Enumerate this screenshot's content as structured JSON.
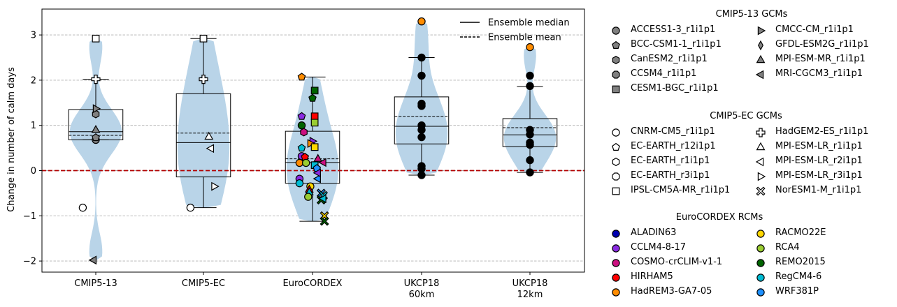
{
  "chart_data": {
    "type": "violin+box",
    "ylabel": "Change in number of calm days",
    "ylim": [
      -2.25,
      3.55
    ],
    "yticks": [
      -2,
      -1,
      0,
      1,
      2,
      3
    ],
    "ytick_labels": [
      "−2",
      "−1",
      "0",
      "1",
      "2",
      "3"
    ],
    "grid": "y-dashed",
    "zero_line": {
      "value": 0,
      "color": "#b30000",
      "style": "dashed"
    },
    "categories": [
      {
        "label": "CMIP5-13",
        "label2": ""
      },
      {
        "label": "CMIP5-EC",
        "label2": ""
      },
      {
        "label": "EuroCORDEX",
        "label2": ""
      },
      {
        "label": "UKCP18",
        "label2": "60km"
      },
      {
        "label": "UKCP18",
        "label2": "12km"
      }
    ],
    "distributions": [
      {
        "category": "CMIP5-13",
        "median": 0.86,
        "mean": 0.78,
        "q1": 0.68,
        "q3": 1.35,
        "whisker_low": 0.68,
        "whisker_high": 2.02,
        "violin_min": -1.98,
        "violin_max": 2.93
      },
      {
        "category": "CMIP5-EC",
        "median": 0.62,
        "mean": 0.83,
        "q1": -0.14,
        "q3": 1.7,
        "whisker_low": -0.82,
        "whisker_high": 2.92,
        "violin_min": -0.82,
        "violin_max": 2.92
      },
      {
        "category": "EuroCORDEX",
        "median": 0.18,
        "mean": 0.26,
        "q1": -0.28,
        "q3": 0.87,
        "whisker_low": -1.12,
        "whisker_high": 2.07,
        "violin_min": -1.12,
        "violin_max": 2.07
      },
      {
        "category": "UKCP18 60km",
        "median": 0.98,
        "mean": 1.2,
        "q1": 0.59,
        "q3": 1.63,
        "whisker_low": -0.1,
        "whisker_high": 2.5,
        "violin_min": -0.1,
        "violin_max": 3.3
      },
      {
        "category": "UKCP18 12km",
        "median": 0.79,
        "mean": 0.95,
        "q1": 0.53,
        "q3": 1.15,
        "whisker_low": -0.04,
        "whisker_high": 1.86,
        "violin_min": -0.04,
        "violin_max": 2.73
      }
    ],
    "points": [
      {
        "category": 0,
        "dx": 0.0,
        "y": 0.68,
        "marker": "circle",
        "color": "#808080"
      },
      {
        "category": 0,
        "dx": 0.0,
        "y": 0.73,
        "marker": "pentagon",
        "color": "#808080"
      },
      {
        "category": 0,
        "dx": 0.0,
        "y": 0.9,
        "marker": "triangle-up",
        "color": "#808080"
      },
      {
        "category": 0,
        "dx": 0.0,
        "y": 1.25,
        "marker": "hexagon",
        "color": "#808080"
      },
      {
        "category": 0,
        "dx": 0.0,
        "y": 1.37,
        "marker": "triangle-right",
        "color": "#808080"
      },
      {
        "category": 0,
        "dx": 0.0,
        "y": 2.02,
        "marker": "plus",
        "color": "#ffffff"
      },
      {
        "category": 0,
        "dx": 0.0,
        "y": 2.92,
        "marker": "square",
        "color": "#ffffff"
      },
      {
        "category": 0,
        "dx": -0.12,
        "y": -0.82,
        "marker": "circle",
        "color": "#ffffff"
      },
      {
        "category": 0,
        "dx": -0.02,
        "y": -1.98,
        "marker": "triangle-left",
        "color": "#808080"
      },
      {
        "category": 1,
        "dx": 0.0,
        "y": 2.92,
        "marker": "square",
        "color": "#ffffff"
      },
      {
        "category": 1,
        "dx": 0.0,
        "y": 2.02,
        "marker": "plus",
        "color": "#ffffff"
      },
      {
        "category": 1,
        "dx": 0.05,
        "y": 0.75,
        "marker": "triangle-up",
        "color": "#ffffff"
      },
      {
        "category": 1,
        "dx": 0.07,
        "y": 0.49,
        "marker": "triangle-left",
        "color": "#ffffff"
      },
      {
        "category": 1,
        "dx": 0.1,
        "y": -0.35,
        "marker": "triangle-right",
        "color": "#ffffff"
      },
      {
        "category": 1,
        "dx": -0.12,
        "y": -0.82,
        "marker": "circle",
        "color": "#ffffff"
      },
      {
        "category": 2,
        "dx": -0.1,
        "y": 2.07,
        "marker": "pentagon",
        "color": "#ff8c00"
      },
      {
        "category": 2,
        "dx": 0.02,
        "y": 1.77,
        "marker": "square",
        "color": "#006400"
      },
      {
        "category": 2,
        "dx": 0.0,
        "y": 1.6,
        "marker": "pentagon",
        "color": "#006400"
      },
      {
        "category": 2,
        "dx": -0.1,
        "y": 1.2,
        "marker": "pentagon",
        "color": "#8a2be2"
      },
      {
        "category": 2,
        "dx": 0.02,
        "y": 1.2,
        "marker": "square",
        "color": "#ff0000"
      },
      {
        "category": 2,
        "dx": 0.02,
        "y": 1.06,
        "marker": "square",
        "color": "#9acd32"
      },
      {
        "category": 2,
        "dx": -0.1,
        "y": 1.0,
        "marker": "circle",
        "color": "#006400"
      },
      {
        "category": 2,
        "dx": -0.08,
        "y": 0.85,
        "marker": "hexagon",
        "color": "#cc1080"
      },
      {
        "category": 2,
        "dx": 0.0,
        "y": 0.65,
        "marker": "triangle-right",
        "color": "#8a2be2"
      },
      {
        "category": 2,
        "dx": -0.02,
        "y": 0.6,
        "marker": "triangle-right",
        "color": "#ff8c00"
      },
      {
        "category": 2,
        "dx": 0.02,
        "y": 0.52,
        "marker": "square",
        "color": "#ffd700"
      },
      {
        "category": 2,
        "dx": -0.1,
        "y": 0.5,
        "marker": "pentagon",
        "color": "#00bcd4"
      },
      {
        "category": 2,
        "dx": -0.1,
        "y": 0.32,
        "marker": "circle",
        "color": "#8a2be2"
      },
      {
        "category": 2,
        "dx": -0.07,
        "y": 0.3,
        "marker": "pentagon",
        "color": "#ff0000"
      },
      {
        "category": 2,
        "dx": 0.05,
        "y": 0.26,
        "marker": "triangle-up",
        "color": "#cc1080"
      },
      {
        "category": 2,
        "dx": -0.12,
        "y": 0.17,
        "marker": "circle",
        "color": "#ff8c00"
      },
      {
        "category": 2,
        "dx": -0.06,
        "y": 0.17,
        "marker": "circle",
        "color": "#9acd32"
      },
      {
        "category": 2,
        "dx": 0.02,
        "y": 0.12,
        "marker": "square",
        "color": "#00bcd4"
      },
      {
        "category": 2,
        "dx": 0.1,
        "y": 0.18,
        "marker": "triangle-left",
        "color": "#cc1080"
      },
      {
        "category": 2,
        "dx": 0.04,
        "y": 0.05,
        "marker": "pentagon",
        "color": "#1e90ff"
      },
      {
        "category": 2,
        "dx": -0.12,
        "y": -0.18,
        "marker": "circle",
        "color": "#8a2be2"
      },
      {
        "category": 2,
        "dx": -0.12,
        "y": -0.28,
        "marker": "circle",
        "color": "#00bcd4"
      },
      {
        "category": 2,
        "dx": 0.05,
        "y": -0.18,
        "marker": "triangle-left",
        "color": "#1e90ff"
      },
      {
        "category": 2,
        "dx": 0.05,
        "y": -0.05,
        "marker": "triangle-left",
        "color": "#8a2be2"
      },
      {
        "category": 2,
        "dx": -0.02,
        "y": -0.35,
        "marker": "circle",
        "color": "#ffd700"
      },
      {
        "category": 2,
        "dx": -0.03,
        "y": -0.42,
        "marker": "triangle-up",
        "color": "#ff0000"
      },
      {
        "category": 2,
        "dx": -0.03,
        "y": -0.48,
        "marker": "triangle-up",
        "color": "#00bcd4"
      },
      {
        "category": 2,
        "dx": -0.04,
        "y": -0.58,
        "marker": "circle",
        "color": "#9acd32"
      },
      {
        "category": 2,
        "dx": 0.08,
        "y": -0.5,
        "marker": "cross",
        "color": "#1e90ff"
      },
      {
        "category": 2,
        "dx": 0.1,
        "y": -0.55,
        "marker": "cross",
        "color": "#00bcd4"
      },
      {
        "category": 2,
        "dx": 0.08,
        "y": -0.65,
        "marker": "cross",
        "color": "#006400"
      },
      {
        "category": 2,
        "dx": 0.1,
        "y": -0.62,
        "marker": "triangle-left",
        "color": "#00bcd4"
      },
      {
        "category": 2,
        "dx": 0.11,
        "y": -1.0,
        "marker": "cross",
        "color": "#ffd700"
      },
      {
        "category": 2,
        "dx": 0.11,
        "y": -1.12,
        "marker": "cross",
        "color": "#006400"
      },
      {
        "category": 3,
        "dx": 0.0,
        "y": 3.3,
        "marker": "circle",
        "color": "#ff8c00"
      },
      {
        "category": 3,
        "dx": 0.0,
        "y": 2.5,
        "marker": "circle",
        "color": "#000000"
      },
      {
        "category": 3,
        "dx": 0.0,
        "y": 2.1,
        "marker": "circle",
        "color": "#000000"
      },
      {
        "category": 3,
        "dx": 0.0,
        "y": 1.48,
        "marker": "circle",
        "color": "#000000"
      },
      {
        "category": 3,
        "dx": 0.0,
        "y": 1.43,
        "marker": "circle",
        "color": "#000000"
      },
      {
        "category": 3,
        "dx": 0.0,
        "y": 1.0,
        "marker": "circle",
        "color": "#000000"
      },
      {
        "category": 3,
        "dx": 0.0,
        "y": 0.9,
        "marker": "circle",
        "color": "#000000"
      },
      {
        "category": 3,
        "dx": 0.0,
        "y": 0.74,
        "marker": "circle",
        "color": "#000000"
      },
      {
        "category": 3,
        "dx": 0.0,
        "y": 0.1,
        "marker": "circle",
        "color": "#000000"
      },
      {
        "category": 3,
        "dx": 0.0,
        "y": 0.04,
        "marker": "circle",
        "color": "#000000"
      },
      {
        "category": 3,
        "dx": 0.0,
        "y": -0.1,
        "marker": "circle",
        "color": "#000000"
      },
      {
        "category": 4,
        "dx": 0.0,
        "y": 2.73,
        "marker": "circle",
        "color": "#ff8c00"
      },
      {
        "category": 4,
        "dx": 0.0,
        "y": 2.1,
        "marker": "circle",
        "color": "#000000"
      },
      {
        "category": 4,
        "dx": 0.0,
        "y": 1.87,
        "marker": "circle",
        "color": "#000000"
      },
      {
        "category": 4,
        "dx": 0.0,
        "y": 0.9,
        "marker": "circle",
        "color": "#000000"
      },
      {
        "category": 4,
        "dx": 0.0,
        "y": 0.8,
        "marker": "circle",
        "color": "#000000"
      },
      {
        "category": 4,
        "dx": 0.0,
        "y": 0.62,
        "marker": "circle",
        "color": "#000000"
      },
      {
        "category": 4,
        "dx": 0.0,
        "y": 0.57,
        "marker": "circle",
        "color": "#000000"
      },
      {
        "category": 4,
        "dx": 0.0,
        "y": 0.23,
        "marker": "circle",
        "color": "#000000"
      },
      {
        "category": 4,
        "dx": 0.0,
        "y": -0.04,
        "marker": "circle",
        "color": "#000000"
      }
    ],
    "line_legend": [
      {
        "label": "Ensemble median",
        "style": "solid"
      },
      {
        "label": "Ensemble mean",
        "style": "dashed"
      }
    ],
    "legend_groups": [
      {
        "title": "CMIP5-13 GCMs",
        "items": [
          {
            "label": "ACCESS1-3_r1i1p1",
            "marker": "circle",
            "color": "#808080"
          },
          {
            "label": "BCC-CSM1-1_r1i1p1",
            "marker": "pentagon",
            "color": "#808080"
          },
          {
            "label": "CanESM2_r1i1p1",
            "marker": "hexagon",
            "color": "#808080"
          },
          {
            "label": "CCSM4_r1i1p1",
            "marker": "octagon",
            "color": "#808080"
          },
          {
            "label": "CESM1-BGC_r1i1p1",
            "marker": "square",
            "color": "#808080"
          },
          {
            "label": "CMCC-CM_r1i1p1",
            "marker": "triangle-right",
            "color": "#808080"
          },
          {
            "label": "GFDL-ESM2G_r1i1p1",
            "marker": "thin-diamond",
            "color": "#808080"
          },
          {
            "label": "MPI-ESM-MR_r1i1p1",
            "marker": "triangle-up",
            "color": "#808080"
          },
          {
            "label": "MRI-CGCM3_r1i1p1",
            "marker": "triangle-left",
            "color": "#808080"
          }
        ]
      },
      {
        "title": "CMIP5-EC GCMs",
        "items": [
          {
            "label": "CNRM-CM5_r1i1p1",
            "marker": "circle",
            "color": "#ffffff"
          },
          {
            "label": "EC-EARTH_r12i1p1",
            "marker": "pentagon",
            "color": "#ffffff"
          },
          {
            "label": "EC-EARTH_r1i1p1",
            "marker": "hexagon",
            "color": "#ffffff"
          },
          {
            "label": "EC-EARTH_r3i1p1",
            "marker": "octagon",
            "color": "#ffffff"
          },
          {
            "label": "IPSL-CM5A-MR_r1i1p1",
            "marker": "square",
            "color": "#ffffff"
          },
          {
            "label": "HadGEM2-ES_r1i1p1",
            "marker": "plus",
            "color": "#ffffff"
          },
          {
            "label": "MPI-ESM-LR_r1i1p1",
            "marker": "triangle-up",
            "color": "#ffffff"
          },
          {
            "label": "MPI-ESM-LR_r2i1p1",
            "marker": "triangle-left",
            "color": "#ffffff"
          },
          {
            "label": "MPI-ESM-LR_r3i1p1",
            "marker": "triangle-right",
            "color": "#ffffff"
          },
          {
            "label": "NorESM1-M_r1i1p1",
            "marker": "cross",
            "color": "#ffffff"
          }
        ]
      },
      {
        "title": "EuroCORDEX RCMs",
        "items": [
          {
            "label": "ALADIN63",
            "marker": "circle",
            "color": "#0000b0"
          },
          {
            "label": "CCLM4-8-17",
            "marker": "circle",
            "color": "#8a2be2"
          },
          {
            "label": "COSMO-crCLIM-v1-1",
            "marker": "circle",
            "color": "#cc1080"
          },
          {
            "label": "HIRHAM5",
            "marker": "circle",
            "color": "#ff0000"
          },
          {
            "label": "HadREM3-GA7-05",
            "marker": "circle",
            "color": "#ff8c00"
          },
          {
            "label": "RACMO22E",
            "marker": "circle",
            "color": "#ffd700"
          },
          {
            "label": "RCA4",
            "marker": "circle",
            "color": "#9acd32"
          },
          {
            "label": "REMO2015",
            "marker": "circle",
            "color": "#006400"
          },
          {
            "label": "RegCM4-6",
            "marker": "circle",
            "color": "#00bcd4"
          },
          {
            "label": "WRF381P",
            "marker": "circle",
            "color": "#1e90ff"
          }
        ]
      }
    ],
    "colors": {
      "violin": "#b9d4e8",
      "grid": "#b0b0b0",
      "zero": "#b30000"
    }
  }
}
